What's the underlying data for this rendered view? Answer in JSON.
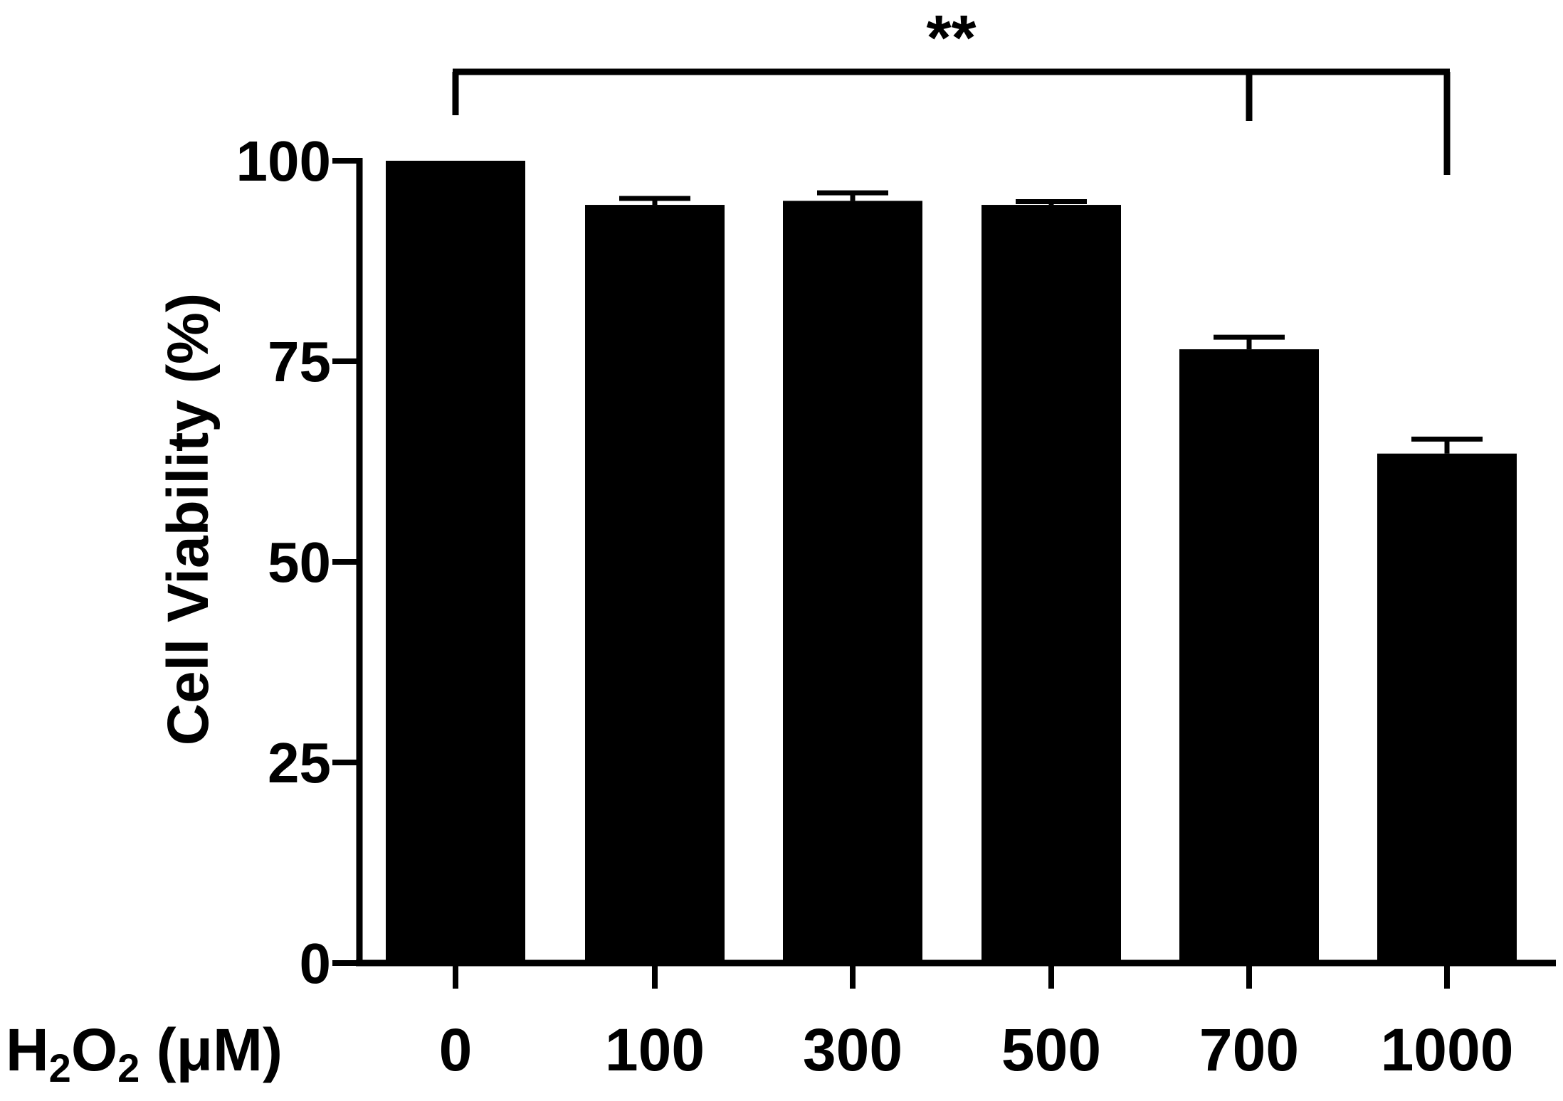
{
  "chart_data": {
    "type": "bar",
    "categories": [
      "0",
      "100",
      "300",
      "500",
      "700",
      "1000"
    ],
    "values": [
      100,
      94.5,
      95,
      94.5,
      76.5,
      63.5
    ],
    "errors": [
      0,
      0.8,
      1.0,
      0.4,
      1.5,
      1.8
    ],
    "ylabel": "Cell Viability (%)",
    "xlabel": "H2O2 (μM)",
    "ylim": [
      0,
      100
    ],
    "yticks": [
      0,
      25,
      50,
      75,
      100
    ],
    "significance": {
      "label": "**",
      "from": "0",
      "to": [
        "700",
        "1000"
      ]
    },
    "bar_color": "#000000"
  }
}
